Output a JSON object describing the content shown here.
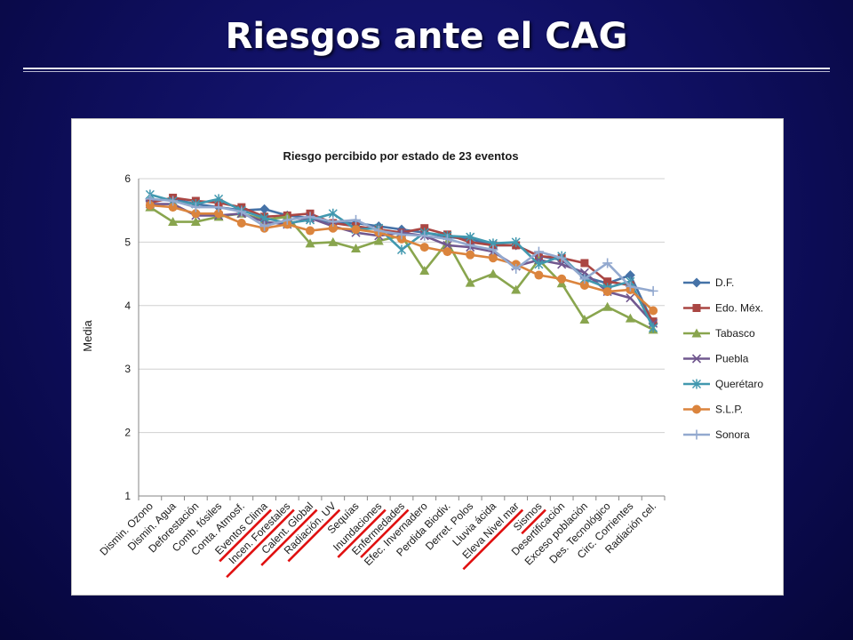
{
  "slide": {
    "title": "Riesgos ante el CAG"
  },
  "chart_data": {
    "type": "line",
    "title": "Riesgo percibido por estado de 23 eventos",
    "xlabel": "",
    "ylabel": "Media",
    "ylim": [
      1,
      6
    ],
    "yticks": [
      1,
      2,
      3,
      4,
      5,
      6
    ],
    "grid": "horizontal",
    "legend": "right",
    "categories": [
      "Dismin. Ozono",
      "Dismin. Agua",
      "Deforestación",
      "Comb. fósiles",
      "Conta. Atmosf.",
      "Eventos Clima",
      "Incen. Forestales",
      "Calent. Global",
      "Radiación. UV",
      "Sequías",
      "Inundaciones",
      "Enfermedades",
      "Efec. Invernadero",
      "Perdida Biodiv.",
      "Derret. Polos",
      "Lluvia ácida",
      "Eleva Nivel mar",
      "Sismos",
      "Desertificación",
      "Exceso población",
      "Des. Tecnológico",
      "Circ. Corrientes",
      "Radiación cel."
    ],
    "underlined": [
      "Eventos Clima",
      "Incen. Forestales",
      "Calent. Global",
      "Radiación. UV",
      "Inundaciones",
      "Enfermedades",
      "Eleva Nivel mar",
      "Sismos"
    ],
    "series": [
      {
        "name": "D.F.",
        "color": "#4572a7",
        "marker": "diamond",
        "values": [
          5.65,
          5.68,
          5.6,
          5.55,
          5.5,
          5.52,
          5.42,
          5.38,
          5.3,
          5.3,
          5.25,
          5.2,
          5.15,
          5.08,
          5.05,
          4.95,
          4.95,
          4.78,
          4.72,
          4.45,
          4.35,
          4.48,
          3.72
        ]
      },
      {
        "name": "Edo. Méx.",
        "color": "#aa4643",
        "marker": "square",
        "values": [
          5.62,
          5.7,
          5.65,
          5.62,
          5.55,
          5.4,
          5.42,
          5.45,
          5.3,
          5.25,
          5.2,
          5.15,
          5.22,
          5.12,
          5.0,
          4.95,
          4.95,
          4.78,
          4.75,
          4.67,
          4.38,
          4.32,
          3.75
        ]
      },
      {
        "name": "Tabasco",
        "color": "#89a54e",
        "marker": "triangle",
        "values": [
          5.55,
          5.32,
          5.32,
          5.4,
          5.45,
          5.35,
          5.4,
          4.98,
          5.0,
          4.9,
          5.02,
          5.1,
          4.55,
          5.0,
          4.36,
          4.5,
          4.25,
          4.72,
          4.35,
          3.78,
          3.98,
          3.8,
          3.62
        ]
      },
      {
        "name": "Puebla",
        "color": "#71588f",
        "marker": "x",
        "values": [
          5.6,
          5.6,
          5.42,
          5.42,
          5.45,
          5.32,
          5.28,
          5.38,
          5.25,
          5.15,
          5.1,
          5.15,
          5.1,
          4.95,
          4.92,
          4.85,
          4.62,
          4.72,
          4.65,
          4.52,
          4.22,
          4.12,
          3.72
        ]
      },
      {
        "name": "Querétaro",
        "color": "#4198af",
        "marker": "star",
        "values": [
          5.75,
          5.65,
          5.6,
          5.68,
          5.5,
          5.38,
          5.3,
          5.35,
          5.45,
          5.2,
          5.22,
          4.88,
          5.15,
          5.1,
          5.08,
          4.98,
          5.0,
          4.65,
          4.78,
          4.42,
          4.28,
          4.38,
          3.65
        ]
      },
      {
        "name": "S.L.P.",
        "color": "#db843d",
        "marker": "circle",
        "values": [
          5.58,
          5.55,
          5.45,
          5.45,
          5.3,
          5.22,
          5.28,
          5.18,
          5.22,
          5.2,
          5.15,
          5.05,
          4.92,
          4.85,
          4.8,
          4.75,
          4.65,
          4.48,
          4.42,
          4.32,
          4.22,
          4.25,
          3.92
        ]
      },
      {
        "name": "Sonora",
        "color": "#93a9cf",
        "marker": "plus",
        "values": [
          5.68,
          5.65,
          5.55,
          5.55,
          5.48,
          5.25,
          5.35,
          5.4,
          5.32,
          5.35,
          5.18,
          5.12,
          5.1,
          5.05,
          4.95,
          4.88,
          4.58,
          4.85,
          4.75,
          4.42,
          4.67,
          4.3,
          4.23
        ]
      }
    ]
  }
}
